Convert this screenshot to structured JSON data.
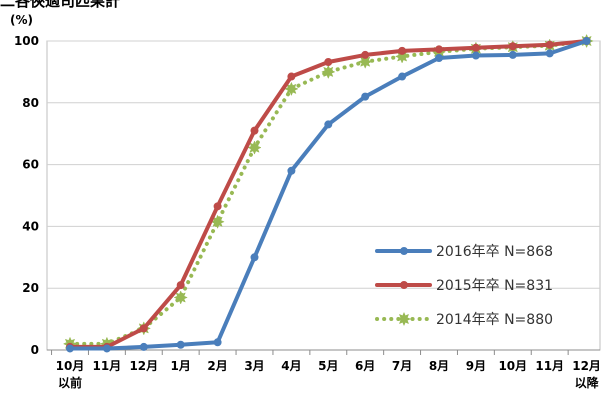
{
  "chart_data": {
    "type": "line",
    "top_label": "二各俠適司匹果計",
    "unit_label": "(%)",
    "categories": [
      [
        "10月",
        "以前"
      ],
      [
        "11月"
      ],
      [
        "12月"
      ],
      [
        "1月"
      ],
      [
        "2月"
      ],
      [
        "3月"
      ],
      [
        "4月"
      ],
      [
        "5月"
      ],
      [
        "6月"
      ],
      [
        "7月"
      ],
      [
        "8月"
      ],
      [
        "9月"
      ],
      [
        "10月"
      ],
      [
        "11月"
      ],
      [
        "12月",
        "以降"
      ]
    ],
    "ylim": [
      0,
      100
    ],
    "yticks": [
      0,
      20,
      40,
      60,
      80,
      100
    ],
    "grid": true,
    "legend_position": "bottom-right",
    "series": [
      {
        "name": "2016年卒 N=868",
        "color": "#4a7ebb",
        "style": "solid",
        "marker": "circle",
        "values": [
          0.5,
          0.5,
          1.0,
          1.7,
          2.5,
          30.0,
          58.0,
          73.0,
          82.0,
          88.5,
          94.5,
          95.3,
          95.5,
          96.0,
          100.0
        ]
      },
      {
        "name": "2015年卒 N=831",
        "color": "#be4b48",
        "style": "solid",
        "marker": "circle",
        "values": [
          1.0,
          1.0,
          7.0,
          21.0,
          46.5,
          71.0,
          88.5,
          93.2,
          95.5,
          96.8,
          97.3,
          97.8,
          98.3,
          98.8,
          100.0
        ]
      },
      {
        "name": "2014年卒 N=880",
        "color": "#98b954",
        "style": "dotted",
        "marker": "star",
        "values": [
          2.0,
          2.0,
          7.0,
          17.0,
          41.5,
          65.5,
          84.5,
          90.0,
          93.3,
          95.0,
          96.5,
          97.5,
          98.0,
          98.5,
          100.0
        ]
      }
    ]
  }
}
